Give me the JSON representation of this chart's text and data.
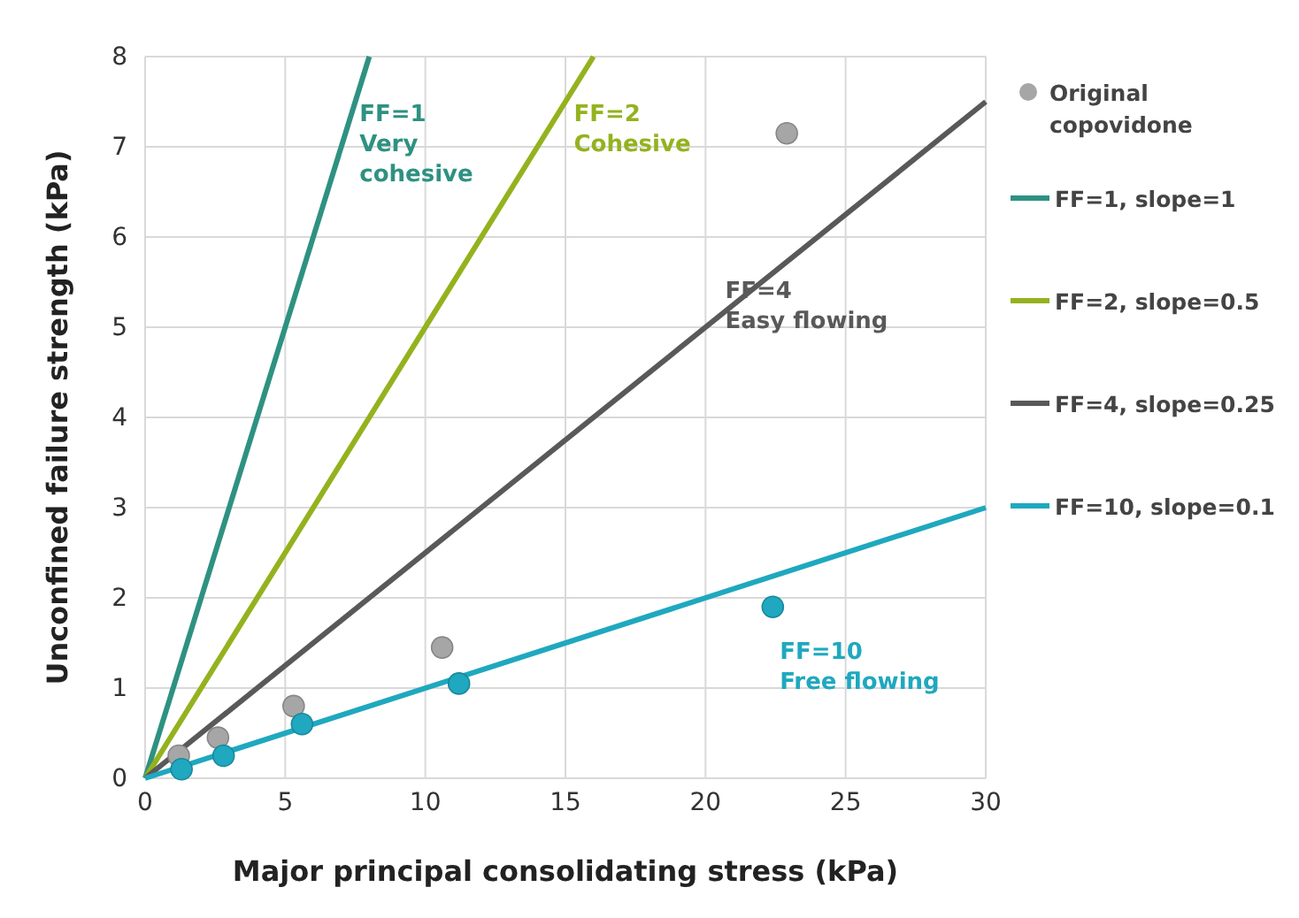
{
  "chart_data": {
    "type": "scatter",
    "xlabel": "Major principal consolidating stress (kPa)",
    "ylabel": "Unconfined failure strength (kPa)",
    "xlim": [
      0,
      30
    ],
    "xticks": [
      0,
      5,
      10,
      15,
      20,
      25,
      30
    ],
    "ylim": [
      0,
      8
    ],
    "yticks": [
      0,
      1,
      2,
      3,
      4,
      5,
      6,
      7,
      8
    ],
    "grid": true,
    "legend": "right",
    "marker": "circle",
    "series": [
      {
        "name": "Original copovidone",
        "color": "#a6a6a6",
        "x": [
          1.2,
          2.6,
          5.3,
          10.6,
          22.9
        ],
        "values": [
          0.25,
          0.45,
          0.8,
          1.45,
          7.15
        ]
      },
      {
        "color": "#1fa8bf",
        "x": [
          1.3,
          2.8,
          5.6,
          11.2,
          22.4
        ],
        "values": [
          0.1,
          0.25,
          0.6,
          1.05,
          1.9
        ]
      },
      {
        "name": "FF=1, slope=1",
        "type": "line",
        "marker": "none",
        "color": "#2e9182",
        "x": [
          0,
          8
        ],
        "values": [
          0,
          8
        ]
      },
      {
        "name": "FF=2, slope=0.5",
        "type": "line",
        "marker": "none",
        "color": "#94b21e",
        "x": [
          0,
          16
        ],
        "values": [
          0,
          8
        ]
      },
      {
        "name": "FF=4, slope=0.25",
        "type": "line",
        "marker": "none",
        "color": "#595959",
        "x": [
          0,
          30
        ],
        "values": [
          0,
          7.5
        ]
      },
      {
        "name": "FF=10, slope=0.1",
        "type": "line",
        "marker": "none",
        "color": "#1fa8bf",
        "x": [
          0,
          30
        ],
        "values": [
          0,
          3
        ]
      }
    ],
    "annotations": [
      "FF=1\nVery\ncohesive",
      "FF=2\nCohesive",
      "FF=4\nEasy flowing",
      "FF=10\nFree flowing"
    ]
  }
}
